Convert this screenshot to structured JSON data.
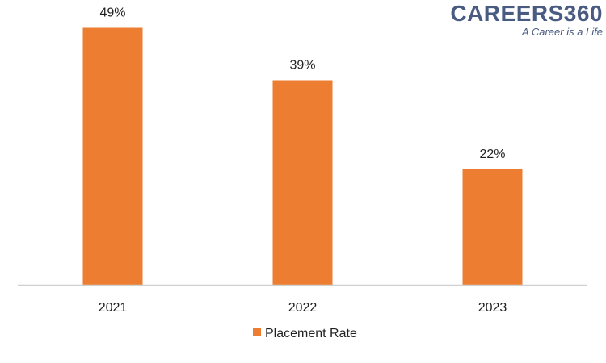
{
  "brand": {
    "name": "CAREERS360",
    "tagline": "A Career is a Life"
  },
  "chart_data": {
    "type": "bar",
    "categories": [
      "2021",
      "2022",
      "2023"
    ],
    "series": [
      {
        "name": "Placement Rate",
        "values": [
          49,
          39,
          22
        ],
        "labels": [
          "49%",
          "39%",
          "22%"
        ],
        "color": "#ED7D31"
      }
    ],
    "title": "",
    "xlabel": "",
    "ylabel": "",
    "ylim": [
      0,
      50
    ],
    "grid": false,
    "legend": "bottom-center"
  }
}
